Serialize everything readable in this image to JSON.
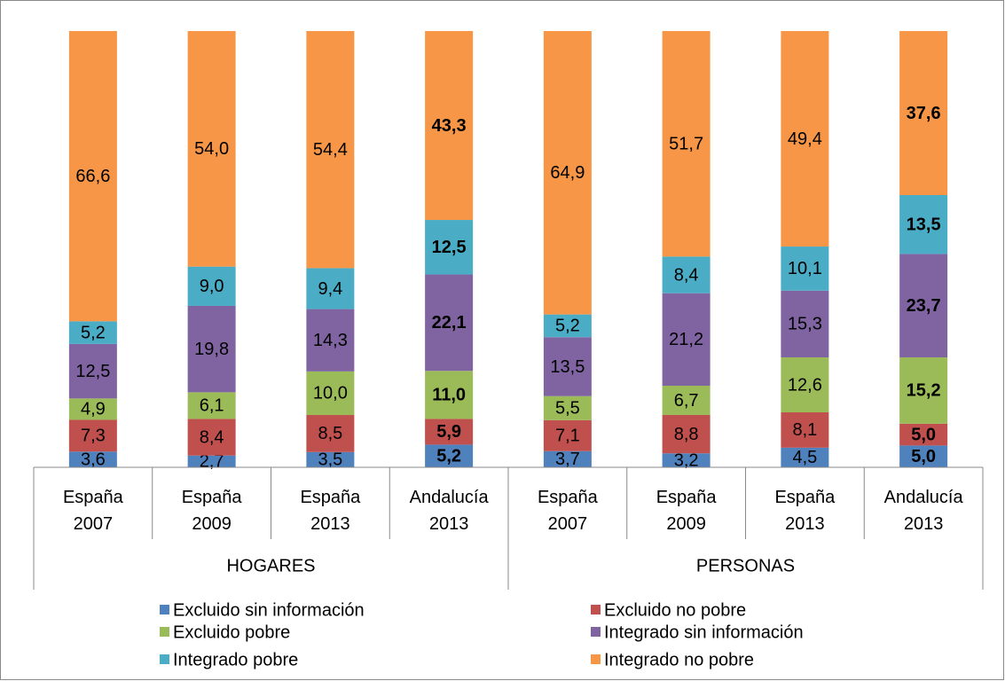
{
  "chart_data": {
    "type": "stacked_bar_100",
    "groups": [
      {
        "name": "HOGARES",
        "categories": [
          "España 2007",
          "España 2009",
          "España 2013",
          "Andalucía 2013"
        ]
      },
      {
        "name": "PERSONAS",
        "categories": [
          "España 2007",
          "España 2009",
          "España 2013",
          "Andalucía 2013"
        ]
      }
    ],
    "emphasis": "Andalucía 2013",
    "series": [
      {
        "name": "Excluido sin información",
        "color": "#4f81bd",
        "values": [
          3.6,
          2.7,
          3.5,
          5.2,
          3.7,
          3.2,
          4.5,
          5.0
        ],
        "value_labels": [
          "3,6",
          "2,7",
          "3,5",
          "5,2",
          "3,7",
          "3,2",
          "4,5",
          "5,0"
        ]
      },
      {
        "name": "Excluido no pobre",
        "color": "#c0504d",
        "values": [
          7.3,
          8.4,
          8.5,
          5.9,
          7.1,
          8.8,
          8.1,
          5.0
        ],
        "value_labels": [
          "7,3",
          "8,4",
          "8,5",
          "5,9",
          "7,1",
          "8,8",
          "8,1",
          "5,0"
        ]
      },
      {
        "name": "Excluido pobre",
        "color": "#9bbb59",
        "values": [
          4.9,
          6.1,
          10.0,
          11.0,
          5.5,
          6.7,
          12.6,
          15.2
        ],
        "value_labels": [
          "4,9",
          "6,1",
          "10,0",
          "11,0",
          "5,5",
          "6,7",
          "12,6",
          "15,2"
        ]
      },
      {
        "name": "Integrado sin información",
        "color": "#8064a2",
        "values": [
          12.5,
          19.8,
          14.3,
          22.1,
          13.5,
          21.2,
          15.3,
          23.7
        ],
        "value_labels": [
          "12,5",
          "19,8",
          "14,3",
          "22,1",
          "13,5",
          "21,2",
          "15,3",
          "23,7"
        ]
      },
      {
        "name": "Integrado pobre",
        "color": "#4bacc6",
        "values": [
          5.2,
          9.0,
          9.4,
          12.5,
          5.2,
          8.4,
          10.1,
          13.5
        ],
        "value_labels": [
          "5,2",
          "9,0",
          "9,4",
          "12,5",
          "5,2",
          "8,4",
          "10,1",
          "13,5"
        ]
      },
      {
        "name": "Integrado no pobre",
        "color": "#f79646",
        "values": [
          66.6,
          54.0,
          54.4,
          43.3,
          64.9,
          51.7,
          49.4,
          37.6
        ],
        "value_labels": [
          "66,6",
          "54,0",
          "54,4",
          "43,3",
          "64,9",
          "51,7",
          "49,4",
          "37,6"
        ]
      }
    ],
    "legend": "bottom"
  }
}
